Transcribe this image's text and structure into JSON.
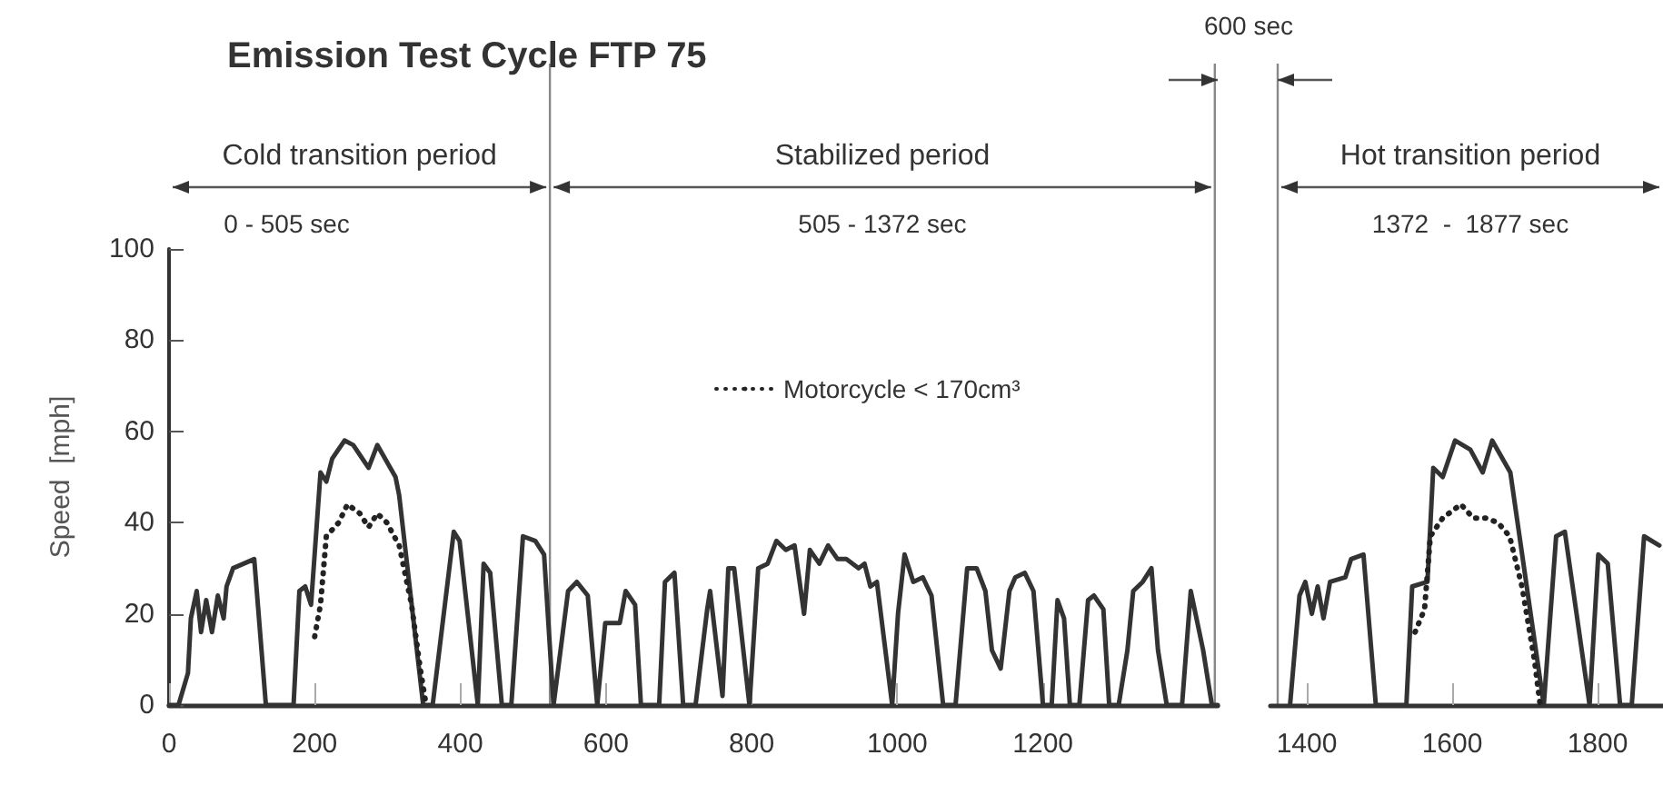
{
  "chart_data": [
    {
      "type": "line",
      "title": "Emission Test Cycle FTP 75",
      "ylabel": "Speed  [mph]",
      "xlim": [
        0,
        1440
      ],
      "xticks": [
        0,
        200,
        400,
        600,
        800,
        1000,
        1200
      ],
      "ylim": [
        0,
        100
      ],
      "yticks": [
        0,
        20,
        40,
        60,
        80,
        100
      ],
      "grid": false,
      "legend": "top",
      "marker": "none",
      "series": [
        {
          "color": "#333333",
          "line_style": "solid",
          "x": [
            0,
            13,
            26,
            30,
            38,
            44,
            51,
            59,
            67,
            75,
            79,
            88,
            117,
            133,
            171,
            179,
            187,
            195,
            208,
            216,
            224,
            241,
            253,
            274,
            286,
            311,
            316,
            349,
            362,
            391,
            399,
            424,
            432,
            441,
            457,
            470,
            486,
            503,
            515,
            528,
            548,
            560,
            575,
            588,
            599,
            619,
            627,
            640,
            648,
            673,
            681,
            694,
            706,
            723,
            739,
            743,
            760,
            768,
            776,
            797,
            809,
            822,
            834,
            847,
            859,
            872,
            880,
            893,
            905,
            918,
            930,
            947,
            955,
            963,
            972,
            993,
            1001,
            1010,
            1022,
            1035,
            1047,
            1063,
            1080,
            1096,
            1109,
            1121,
            1130,
            1142,
            1154,
            1162,
            1175,
            1187,
            1200,
            1212,
            1220,
            1229,
            1237,
            1250,
            1262,
            1270,
            1283,
            1291,
            1304,
            1316,
            1324,
            1337,
            1349,
            1358,
            1370,
            1391,
            1403,
            1420,
            1432,
            1440
          ],
          "values": [
            0,
            0,
            7,
            19,
            25,
            16,
            23,
            16,
            24,
            19,
            26,
            30,
            32,
            0,
            0,
            25,
            26,
            22,
            51,
            49,
            54,
            58,
            57,
            52,
            57,
            50,
            46,
            0,
            0,
            38,
            36,
            0,
            31,
            29,
            0,
            0,
            37,
            36,
            33,
            0,
            25,
            27,
            24,
            0,
            18,
            18,
            25,
            22,
            0,
            0,
            27,
            29,
            0,
            0,
            21,
            25,
            2,
            30,
            30,
            0,
            30,
            31,
            36,
            34,
            35,
            20,
            34,
            31,
            35,
            32,
            32,
            30,
            31,
            26,
            27,
            0,
            20,
            33,
            27,
            28,
            24,
            0,
            0,
            30,
            30,
            25,
            12,
            8,
            25,
            28,
            29,
            25,
            0,
            0,
            23,
            19,
            0,
            0,
            23,
            24,
            21,
            0,
            0,
            12,
            25,
            27,
            30,
            12,
            0,
            0,
            25,
            12,
            0,
            0
          ]
        },
        {
          "name": "Motorcycle < 170cm³",
          "color": "#222222",
          "line_style": "dotted",
          "x": [
            200,
            208,
            216,
            233,
            245,
            262,
            274,
            286,
            299,
            316,
            333,
            345,
            353
          ],
          "values": [
            15,
            22,
            37,
            40,
            44,
            42,
            39,
            42,
            40,
            35,
            22,
            8,
            0
          ]
        }
      ],
      "ref_lines": [
        {
          "axis": "x",
          "value": 523,
          "label": null,
          "color": "#888888"
        },
        {
          "axis": "x",
          "value": 1436,
          "label": null,
          "color": "#888888"
        }
      ],
      "annotations": [
        "Cold transition period",
        "0 - 505 sec",
        "Stabilized period",
        "505 - 1372 sec"
      ]
    },
    {
      "type": "line",
      "xlim": [
        1350,
        1890
      ],
      "xticks": [
        1400,
        1600,
        1800
      ],
      "ylim": [
        0,
        100
      ],
      "tick_labels": "x",
      "grid": false,
      "marker": "none",
      "series": [
        {
          "color": "#333333",
          "line_style": "solid",
          "x": [
            1377,
            1390,
            1398,
            1407,
            1415,
            1423,
            1432,
            1453,
            1461,
            1478,
            1495,
            1537,
            1545,
            1566,
            1574,
            1587,
            1604,
            1625,
            1642,
            1655,
            1680,
            1726,
            1743,
            1755,
            1789,
            1801,
            1814,
            1831,
            1847,
            1864,
            1885
          ],
          "values": [
            0,
            24,
            27,
            20,
            26,
            19,
            27,
            28,
            32,
            33,
            0,
            0,
            26,
            27,
            52,
            50,
            58,
            56,
            51,
            58,
            51,
            0,
            37,
            38,
            0,
            33,
            31,
            0,
            0,
            37,
            35
          ]
        },
        {
          "color": "#222222",
          "line_style": "dotted",
          "x": [
            1549,
            1562,
            1570,
            1587,
            1612,
            1629,
            1646,
            1663,
            1679,
            1696,
            1713,
            1721
          ],
          "values": [
            16,
            21,
            37,
            41,
            44,
            41,
            41,
            40,
            37,
            26,
            10,
            0
          ]
        }
      ],
      "ref_lines": [
        {
          "axis": "x",
          "value": 1360,
          "label": null,
          "color": "#888888"
        }
      ],
      "annotations": [
        "Hot transition period",
        "1372  -  1877 sec",
        "600 sec"
      ]
    }
  ]
}
